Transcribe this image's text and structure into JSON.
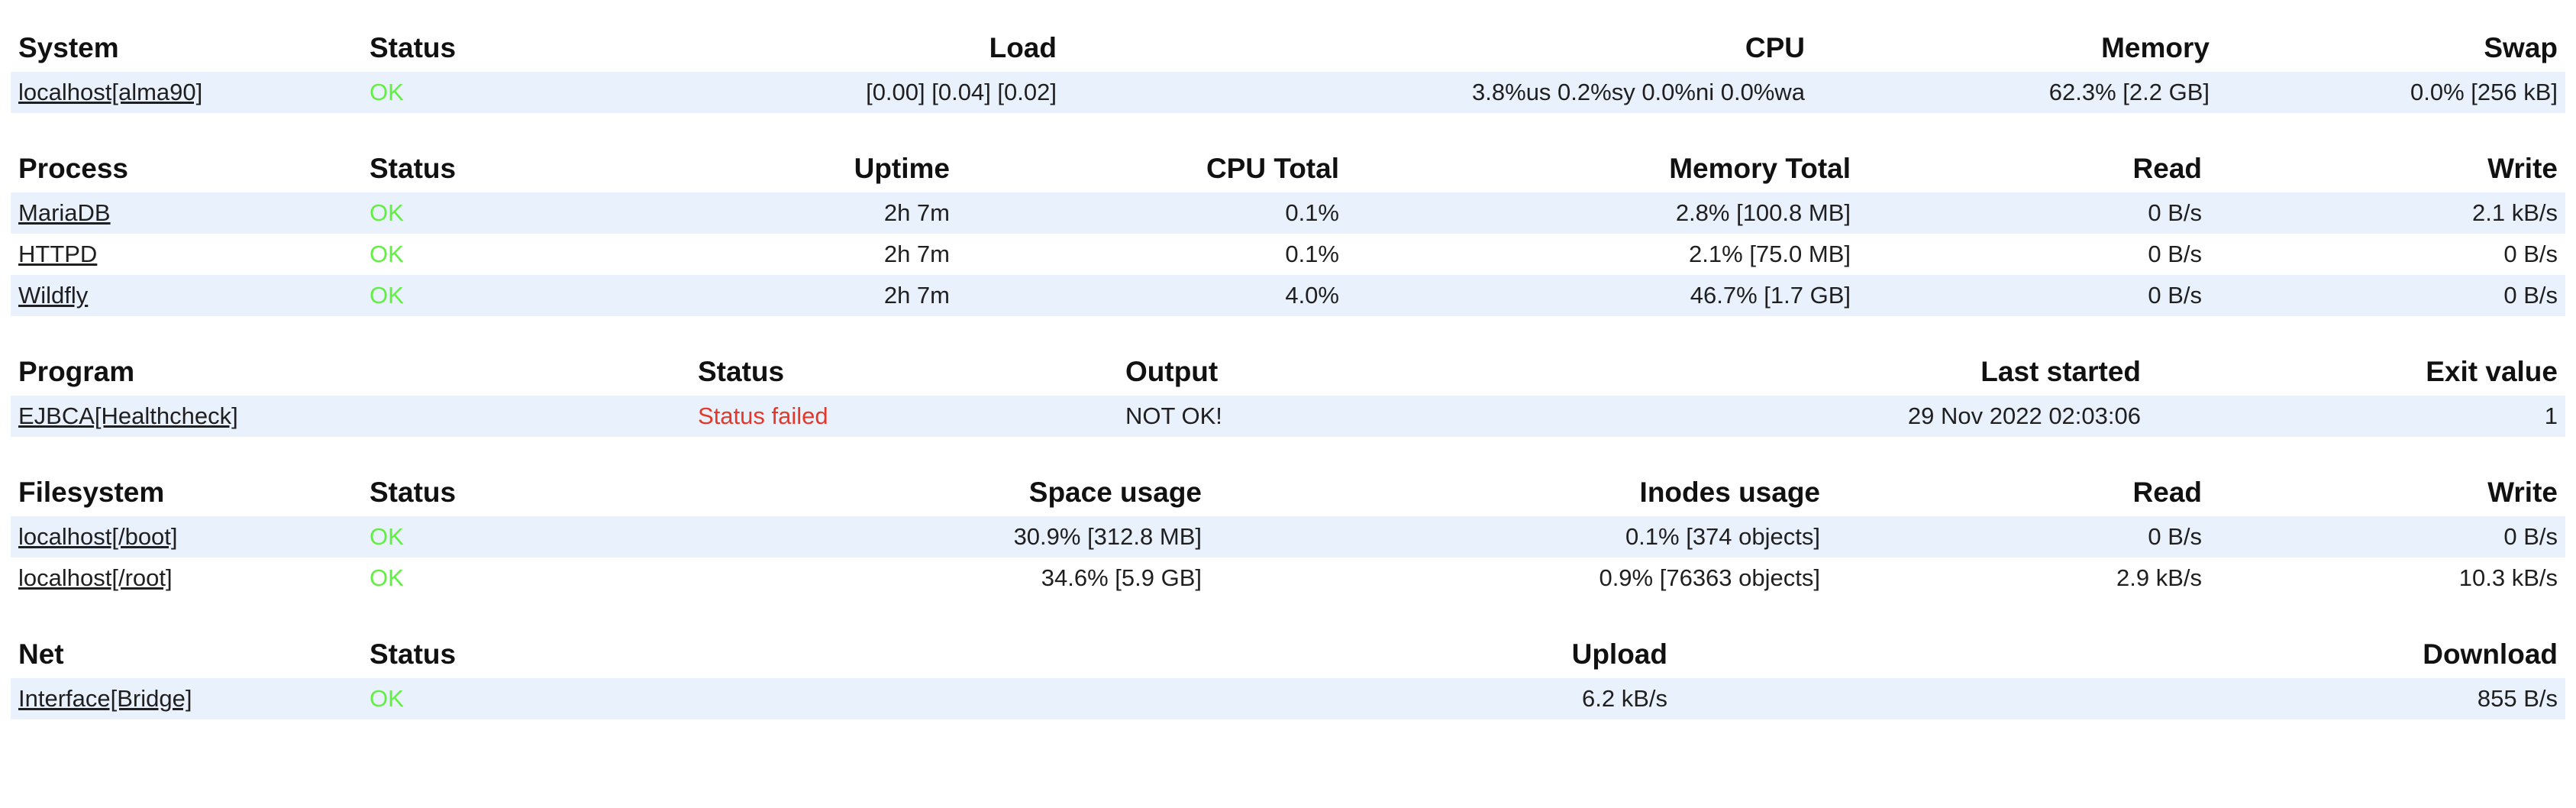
{
  "colors": {
    "background": "#ffffff",
    "row_highlight": "#e9f1fd",
    "status_ok": "#62ee43",
    "status_failed": "#e6382a",
    "header_text": "#111111",
    "body_text": "#1f1f1f"
  },
  "tables": [
    {
      "id": "system",
      "title": "System",
      "columns": [
        {
          "label": "System",
          "align": "left"
        },
        {
          "label": "Status",
          "align": "left"
        },
        {
          "label": "Load",
          "align": "right"
        },
        {
          "label": "CPU",
          "align": "right"
        },
        {
          "label": "Memory",
          "align": "right"
        },
        {
          "label": "Swap",
          "align": "right"
        }
      ],
      "rows": [
        {
          "cells": [
            {
              "text": "localhost[alma90]",
              "type": "link"
            },
            {
              "text": "OK",
              "type": "status-ok"
            },
            {
              "text": "[0.00] [0.04] [0.02]"
            },
            {
              "text": "3.8%us 0.2%sy 0.0%ni 0.0%wa"
            },
            {
              "text": "62.3% [2.2 GB]"
            },
            {
              "text": "0.0% [256 kB]"
            }
          ]
        }
      ]
    },
    {
      "id": "process",
      "title": "Process",
      "columns": [
        {
          "label": "Process",
          "align": "left"
        },
        {
          "label": "Status",
          "align": "left"
        },
        {
          "label": "Uptime",
          "align": "right"
        },
        {
          "label": "CPU Total",
          "align": "right"
        },
        {
          "label": "Memory Total",
          "align": "right"
        },
        {
          "label": "Read",
          "align": "right"
        },
        {
          "label": "Write",
          "align": "right"
        }
      ],
      "rows": [
        {
          "cells": [
            {
              "text": "MariaDB",
              "type": "link"
            },
            {
              "text": "OK",
              "type": "status-ok"
            },
            {
              "text": "2h 7m"
            },
            {
              "text": "0.1%"
            },
            {
              "text": "2.8% [100.8 MB]"
            },
            {
              "text": "0 B/s"
            },
            {
              "text": "2.1 kB/s"
            }
          ]
        },
        {
          "cells": [
            {
              "text": "HTTPD",
              "type": "link"
            },
            {
              "text": "OK",
              "type": "status-ok"
            },
            {
              "text": "2h 7m"
            },
            {
              "text": "0.1%"
            },
            {
              "text": "2.1% [75.0 MB]"
            },
            {
              "text": "0 B/s"
            },
            {
              "text": "0 B/s"
            }
          ]
        },
        {
          "cells": [
            {
              "text": "Wildfly",
              "type": "link"
            },
            {
              "text": "OK",
              "type": "status-ok"
            },
            {
              "text": "2h 7m"
            },
            {
              "text": "4.0%"
            },
            {
              "text": "46.7% [1.7 GB]"
            },
            {
              "text": "0 B/s"
            },
            {
              "text": "0 B/s"
            }
          ]
        }
      ]
    },
    {
      "id": "program",
      "title": "Program",
      "columns": [
        {
          "label": "Program",
          "align": "left"
        },
        {
          "label": "Status",
          "align": "left"
        },
        {
          "label": "Output",
          "align": "left"
        },
        {
          "label": "Last started",
          "align": "right"
        },
        {
          "label": "Exit value",
          "align": "right"
        }
      ],
      "rows": [
        {
          "cells": [
            {
              "text": "EJBCA[Healthcheck]",
              "type": "link"
            },
            {
              "text": "Status failed",
              "type": "status-failed"
            },
            {
              "text": "NOT OK!"
            },
            {
              "text": "29 Nov 2022 02:03:06"
            },
            {
              "text": "1"
            }
          ]
        }
      ]
    },
    {
      "id": "filesystem",
      "title": "Filesystem",
      "columns": [
        {
          "label": "Filesystem",
          "align": "left"
        },
        {
          "label": "Status",
          "align": "left"
        },
        {
          "label": "Space usage",
          "align": "right"
        },
        {
          "label": "Inodes usage",
          "align": "right"
        },
        {
          "label": "Read",
          "align": "right"
        },
        {
          "label": "Write",
          "align": "right"
        }
      ],
      "rows": [
        {
          "cells": [
            {
              "text": "localhost[/boot]",
              "type": "link"
            },
            {
              "text": "OK",
              "type": "status-ok"
            },
            {
              "text": "30.9% [312.8 MB]"
            },
            {
              "text": "0.1% [374 objects]"
            },
            {
              "text": "0 B/s"
            },
            {
              "text": "0 B/s"
            }
          ]
        },
        {
          "cells": [
            {
              "text": "localhost[/root]",
              "type": "link"
            },
            {
              "text": "OK",
              "type": "status-ok"
            },
            {
              "text": "34.6% [5.9 GB]"
            },
            {
              "text": "0.9% [76363 objects]"
            },
            {
              "text": "2.9 kB/s"
            },
            {
              "text": "10.3 kB/s"
            }
          ]
        }
      ]
    },
    {
      "id": "net",
      "title": "Net",
      "columns": [
        {
          "label": "Net",
          "align": "left"
        },
        {
          "label": "Status",
          "align": "left"
        },
        {
          "label": "Upload",
          "align": "right"
        },
        {
          "label": "Download",
          "align": "right"
        }
      ],
      "rows": [
        {
          "cells": [
            {
              "text": "Interface[Bridge]",
              "type": "link"
            },
            {
              "text": "OK",
              "type": "status-ok"
            },
            {
              "text": "6.2 kB/s"
            },
            {
              "text": "855 B/s"
            }
          ]
        }
      ]
    }
  ]
}
